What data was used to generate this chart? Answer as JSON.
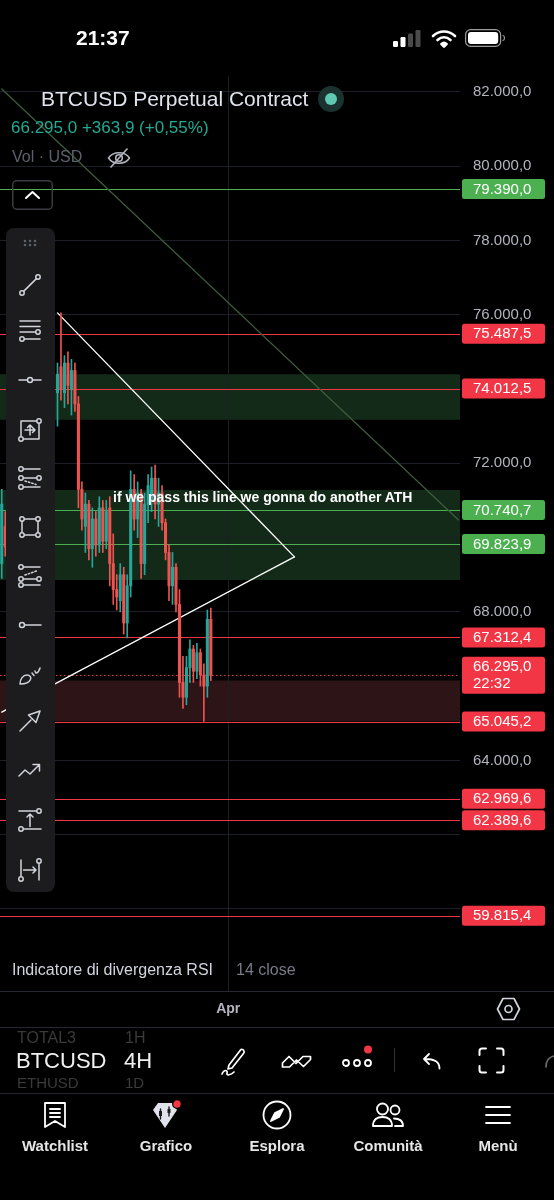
{
  "chart_data": {
    "type": "candlestick",
    "title": "BTCUSD Perpetual Contract",
    "subtitle": "66.295,0 +363,9 (+0,55%)",
    "categories": [
      null,
      null,
      null,
      null,
      null,
      null,
      null,
      null,
      null,
      null,
      null,
      null,
      null,
      null,
      null,
      null,
      null,
      null,
      null,
      null,
      null,
      null,
      null,
      null,
      null,
      null,
      null,
      null,
      null,
      null,
      null,
      null,
      null,
      null,
      null,
      null,
      null,
      null,
      null,
      null,
      null,
      null,
      null,
      null,
      null,
      null,
      null,
      null,
      null,
      null,
      null,
      null,
      null,
      null,
      null,
      null,
      null,
      null,
      null,
      null,
      null,
      null,
      null,
      null,
      null,
      "Apr",
      null,
      null,
      null,
      null,
      null,
      null,
      null,
      null,
      null,
      null,
      null,
      null,
      null,
      null,
      null,
      null,
      null,
      null,
      null,
      null,
      null,
      null,
      null,
      null,
      null,
      null,
      null,
      null,
      null,
      null,
      null,
      null,
      null,
      null,
      null,
      null,
      null,
      null,
      null,
      null,
      null,
      null,
      null,
      null,
      null,
      null,
      null,
      null,
      null,
      null,
      null,
      null,
      null,
      null,
      null,
      null,
      null,
      null,
      null,
      null,
      null,
      null,
      null,
      null,
      null,
      null
    ],
    "ohlc": [
      [
        69300,
        71300,
        68900,
        70900
      ],
      [
        70300,
        70700,
        69500,
        69750
      ],
      null,
      null,
      null,
      null,
      null,
      null,
      null,
      null,
      null,
      null,
      null,
      null,
      null,
      null,
      [
        73900,
        74700,
        73000,
        74400
      ],
      [
        74600,
        76050,
        73700,
        74000
      ],
      [
        73900,
        74900,
        73500,
        74700
      ],
      [
        74700,
        75000,
        73600,
        74100
      ],
      [
        74000,
        74800,
        73300,
        74500
      ],
      [
        74500,
        74700,
        73400,
        73600
      ],
      [
        73600,
        73800,
        70800,
        71300
      ],
      [
        71300,
        71500,
        70200,
        70500
      ],
      [
        70300,
        71200,
        69600,
        70900
      ],
      [
        70900,
        71000,
        69400,
        69700
      ],
      [
        69700,
        70800,
        69200,
        70500
      ],
      [
        70500,
        70700,
        69500,
        69800
      ],
      [
        69800,
        71100,
        69600,
        70800
      ],
      [
        70800,
        71000,
        69600,
        69900
      ],
      [
        69900,
        71000,
        69700,
        70700
      ],
      [
        70800,
        71100,
        68700,
        69300
      ],
      [
        69300,
        70100,
        68200,
        68600
      ],
      [
        68600,
        69000,
        68050,
        68400
      ],
      [
        68300,
        69300,
        68000,
        69000
      ],
      [
        69000,
        69200,
        67400,
        67700
      ],
      [
        67700,
        69000,
        67300,
        68700
      ],
      [
        68700,
        71800,
        68400,
        71300
      ],
      [
        71300,
        71700,
        70200,
        70500
      ],
      [
        70500,
        71500,
        70000,
        71200
      ],
      [
        71200,
        71300,
        68900,
        69300
      ],
      [
        69300,
        71200,
        69000,
        70900
      ],
      [
        70900,
        71700,
        70400,
        71400
      ],
      [
        71000,
        71900,
        70700,
        71600
      ],
      [
        71600,
        71950,
        70500,
        70900
      ],
      [
        70900,
        71600,
        70300,
        71200
      ],
      [
        71200,
        71400,
        70200,
        70400
      ],
      [
        70400,
        70500,
        69400,
        69600
      ],
      [
        69600,
        69800,
        68300,
        68700
      ],
      [
        68700,
        69600,
        68200,
        69200
      ],
      [
        69200,
        69300,
        68000,
        68200
      ],
      [
        68200,
        68600,
        65700,
        66100
      ],
      [
        66100,
        66800,
        65400,
        65700
      ],
      [
        65700,
        66800,
        65500,
        66500
      ],
      [
        66500,
        67250,
        66100,
        67000
      ],
      [
        67000,
        67100,
        66100,
        66400
      ],
      [
        66400,
        67150,
        66200,
        66900
      ],
      [
        66900,
        67000,
        66000,
        66300
      ],
      [
        66300,
        66600,
        65050,
        66000
      ],
      [
        66000,
        68050,
        65700,
        67800
      ],
      [
        67800,
        68100,
        66150,
        66295
      ],
      null,
      null,
      null,
      null,
      null,
      null,
      null,
      null,
      null,
      null,
      null,
      null,
      null,
      null,
      null,
      null,
      null,
      null,
      null,
      null,
      null,
      null,
      null,
      null,
      null,
      null,
      null,
      null,
      null,
      null,
      null,
      null,
      null,
      null,
      null,
      null,
      null,
      null,
      null,
      null,
      null,
      null,
      null,
      null,
      null,
      null,
      null,
      null,
      null,
      null,
      null,
      null,
      null,
      null,
      null,
      null,
      null,
      null,
      null,
      null,
      null,
      null,
      null,
      null,
      null,
      null,
      null,
      null,
      null,
      null,
      null
    ],
    "colors": [
      "#26a69a",
      "#ef5350",
      null,
      null,
      null,
      null,
      null,
      null,
      null,
      null,
      null,
      null,
      null,
      null,
      null,
      null,
      "#26a69a",
      "#ef5350",
      "#26a69a",
      "#ef5350",
      "#26a69a",
      "#ef5350",
      "#ef5350",
      "#ef5350",
      "#26a69a",
      "#ef5350",
      "#26a69a",
      "#ef5350",
      "#26a69a",
      "#ef5350",
      "#26a69a",
      "#ef5350",
      "#ef5350",
      "#ef5350",
      "#26a69a",
      "#ef5350",
      "#26a69a",
      "#26a69a",
      "#ef5350",
      "#26a69a",
      "#ef5350",
      "#26a69a",
      "#26a69a",
      "#26a69a",
      "#ef5350",
      "#26a69a",
      "#ef5350",
      "#ef5350",
      "#ef5350",
      "#26a69a",
      "#ef5350",
      "#ef5350",
      "#ef5350",
      "#26a69a",
      "#26a69a",
      "#ef5350",
      "#26a69a",
      "#ef5350",
      "#ef5350",
      "#26a69a",
      "#ef5350",
      null,
      null,
      null,
      null,
      null,
      null,
      null,
      null,
      null,
      null,
      null,
      null,
      null,
      null,
      null,
      null,
      null,
      null,
      null,
      null,
      null,
      null,
      null,
      null,
      null,
      null,
      null,
      null,
      null,
      null,
      null,
      null,
      null,
      null,
      null,
      null,
      null,
      null,
      null,
      null,
      null,
      null,
      null,
      null,
      null,
      null,
      null,
      null,
      null,
      null,
      null,
      null,
      null,
      null,
      null,
      null,
      null,
      null,
      null,
      null,
      null,
      null,
      null,
      null,
      null,
      null,
      null,
      null,
      null,
      null,
      null
    ],
    "series": [
      {
        "type": "line",
        "color": "#ffffff",
        "values": [
          null,
          null,
          null,
          null,
          null,
          null,
          null,
          null,
          null,
          null,
          null,
          null,
          null,
          null,
          null,
          null,
          76050,
          null,
          null,
          null,
          null,
          null,
          null,
          null,
          null,
          null,
          null,
          null,
          null,
          null,
          null,
          null,
          null,
          null,
          null,
          null,
          null,
          null,
          null,
          null,
          null,
          null,
          null,
          null,
          null,
          null,
          null,
          null,
          null,
          null,
          null,
          null,
          null,
          null,
          null,
          null,
          null,
          null,
          null,
          null,
          null,
          null,
          null,
          null,
          null,
          null,
          null,
          null,
          null,
          null,
          null,
          null,
          null,
          null,
          null,
          null,
          null,
          null,
          null,
          null,
          null,
          null,
          null,
          null,
          69480,
          null,
          null,
          null,
          null,
          null,
          null,
          null,
          null,
          null,
          null,
          null,
          null,
          null,
          null,
          null,
          null,
          null,
          null,
          null,
          null,
          null,
          null,
          null,
          null,
          null,
          null,
          null,
          null,
          null,
          null,
          null,
          null,
          null,
          null,
          null,
          null,
          null,
          null,
          null,
          null,
          null,
          null,
          null,
          null,
          null,
          null,
          null
        ]
      },
      {
        "type": "line",
        "color": "#ffffff",
        "values": [
          65300,
          null,
          null,
          null,
          null,
          null,
          null,
          null,
          null,
          null,
          null,
          null,
          null,
          null,
          null,
          null,
          null,
          null,
          null,
          null,
          null,
          null,
          null,
          null,
          null,
          null,
          null,
          null,
          null,
          null,
          null,
          null,
          null,
          null,
          null,
          null,
          null,
          null,
          null,
          null,
          null,
          null,
          null,
          null,
          null,
          null,
          null,
          null,
          null,
          null,
          null,
          null,
          null,
          null,
          null,
          null,
          null,
          null,
          null,
          null,
          null,
          null,
          null,
          null,
          null,
          null,
          null,
          null,
          null,
          null,
          null,
          null,
          null,
          null,
          null,
          null,
          null,
          null,
          null,
          null,
          null,
          null,
          null,
          null,
          69480,
          null,
          null,
          null,
          null,
          null,
          null,
          null,
          null,
          null,
          null,
          null,
          null,
          null,
          null,
          null,
          null,
          null,
          null,
          null,
          null,
          null,
          null,
          null,
          null,
          null,
          null,
          null,
          null,
          null,
          null,
          null,
          null,
          null,
          null,
          null,
          null,
          null,
          null,
          null,
          null,
          null,
          null,
          null,
          null,
          null,
          null,
          null
        ]
      },
      {
        "type": "line",
        "color": "#3d5c3d",
        "values": [
          82080,
          null,
          null,
          null,
          null,
          null,
          null,
          null,
          null,
          null,
          null,
          null,
          null,
          null,
          null,
          null,
          null,
          null,
          null,
          null,
          null,
          null,
          null,
          null,
          null,
          null,
          null,
          null,
          null,
          null,
          null,
          null,
          null,
          null,
          null,
          null,
          null,
          null,
          null,
          null,
          null,
          null,
          null,
          null,
          null,
          null,
          null,
          null,
          null,
          null,
          null,
          null,
          null,
          null,
          null,
          null,
          null,
          null,
          null,
          null,
          null,
          null,
          null,
          null,
          null,
          null,
          null,
          null,
          null,
          null,
          null,
          null,
          null,
          null,
          null,
          null,
          null,
          null,
          null,
          null,
          null,
          null,
          null,
          null,
          null,
          null,
          null,
          null,
          null,
          null,
          null,
          null,
          null,
          null,
          null,
          null,
          null,
          null,
          null,
          null,
          null,
          null,
          null,
          null,
          null,
          null,
          null,
          null,
          null,
          null,
          null,
          null,
          null,
          null,
          null,
          null,
          null,
          null,
          null,
          null,
          null,
          null,
          null,
          null,
          null,
          null,
          null,
          null,
          null,
          null,
          null,
          70480
        ]
      }
    ],
    "ylim": [
      57790,
      82430
    ],
    "yticks": [
      {
        "value": 82000,
        "label": "82.000,0"
      },
      {
        "value": 80000,
        "label": "80.000,0"
      },
      {
        "value": 78000,
        "label": "78.000,0"
      },
      {
        "value": 76000,
        "label": "76.000,0"
      },
      {
        "value": 72000,
        "label": "72.000,0"
      },
      {
        "value": 70000,
        "label": null
      },
      {
        "value": 68000,
        "label": "68.000,0"
      },
      {
        "value": 64000,
        "label": "64.000,0"
      },
      {
        "value": 62000,
        "label": null
      },
      {
        "value": 60000,
        "label": null
      }
    ],
    "grid": true,
    "bands": [
      {
        "axis": "y",
        "from": 73170,
        "to": 74400,
        "color": "#142a18"
      },
      {
        "axis": "y",
        "from": 68860,
        "to": 71280,
        "color": "#142a18"
      },
      {
        "axis": "y",
        "from": 65045,
        "to": 66150,
        "color": "#2d1416"
      }
    ],
    "ref_lines": [
      {
        "axis": "y",
        "value": 79390,
        "label": "79.390,0",
        "color": "#4caf50"
      },
      {
        "axis": "y",
        "value": 75487.5,
        "label": "75.487,5",
        "color": "#f23645"
      },
      {
        "axis": "y",
        "value": 74012.5,
        "label": "74.012,5",
        "color": "#f23645"
      },
      {
        "axis": "y",
        "value": 70740.7,
        "label": "70.740,7",
        "color": "#4caf50"
      },
      {
        "axis": "y",
        "value": 69823.9,
        "label": "69.823,9",
        "color": "#4caf50"
      },
      {
        "axis": "y",
        "value": 67312.4,
        "label": "67.312,4",
        "color": "#f23645"
      },
      {
        "axis": "y",
        "value": 66295,
        "label": "66.295,0\n22:32",
        "color": "#f23645",
        "line_style": "dotted"
      },
      {
        "axis": "y",
        "value": 65045.2,
        "label": "65.045,2",
        "color": "#f23645"
      },
      {
        "axis": "y",
        "value": 62969.6,
        "label": "62.969,6",
        "color": "#f23645"
      },
      {
        "axis": "y",
        "value": 62389.6,
        "label": "62.389,6",
        "color": "#f23645"
      },
      {
        "axis": "y",
        "value": 59815.4,
        "label": "59.815,4",
        "color": "#f23645"
      }
    ],
    "annotations": [
      "21:37",
      "Vol · USD",
      "if we pass this line we gonna do another ATH",
      "Indicatore di divergenza RSI",
      "14 close",
      "TOTAL3",
      "1H",
      "BTCUSD",
      "4H",
      "ETHUSD",
      "1D",
      "Watchlist",
      "Grafico",
      "Esplora",
      "Comunità",
      "Menù"
    ]
  }
}
